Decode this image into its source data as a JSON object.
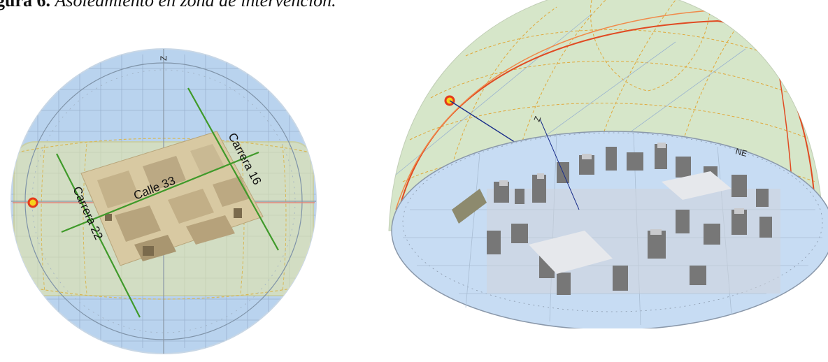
{
  "caption": {
    "label": "gura 6.",
    "text": "Asoleamiento en zona de intervención."
  },
  "left_figure": {
    "street_labels": [
      "Carrera 16",
      "Calle 33",
      "Carrera 22"
    ],
    "zenith_label": "Z",
    "colors": {
      "sky": "#b9d3ee",
      "band": "#e8e6a0",
      "streets": "#3f9a2a",
      "sun": "#e53a1a",
      "city": "#d8c9a2"
    }
  },
  "right_figure": {
    "zenith_label": "Z",
    "compass_label": "NE",
    "colors": {
      "dome": "#cfe2c0",
      "sun_path": "#e04a22",
      "grid": "#e0a83a",
      "ground": "#c7dcf3",
      "buildings": "#8a8a8a"
    }
  }
}
